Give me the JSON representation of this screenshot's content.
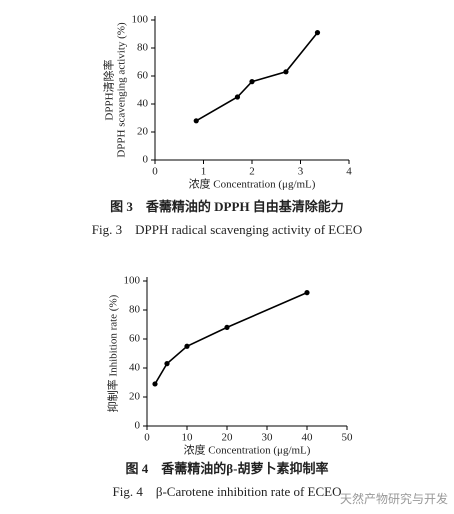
{
  "chart_data": [
    {
      "type": "line",
      "color": "#000000",
      "x_label": "浓度 Concentration (μg/mL)",
      "y_label": [
        "DPPH清除率",
        "DPPH scavenging activity (%)"
      ],
      "x": [
        0.85,
        1.7,
        2.0,
        2.7,
        3.35
      ],
      "values": [
        28,
        45,
        56,
        63,
        91
      ],
      "xlim": [
        0,
        4
      ],
      "ylim": [
        0,
        100
      ],
      "xticks": [
        0,
        1,
        2,
        3,
        4
      ],
      "yticks": [
        0,
        20,
        40,
        60,
        80,
        100
      ],
      "caption_cn": "图 3　香薷精油的 DPPH 自由基清除能力",
      "caption_en": "Fig. 3　DPPH radical scavenging activity of ECEO"
    },
    {
      "type": "line",
      "color": "#000000",
      "x_label": "浓度 Concentration (μg/mL)",
      "y_label": [
        "抑制率 Inhibition rate (%)"
      ],
      "x": [
        2,
        5,
        10,
        20,
        40
      ],
      "values": [
        29,
        43,
        55,
        68,
        92
      ],
      "xlim": [
        0,
        50
      ],
      "ylim": [
        0,
        100
      ],
      "xticks": [
        0,
        10,
        20,
        30,
        40,
        50
      ],
      "yticks": [
        0,
        20,
        40,
        60,
        80,
        100
      ],
      "caption_cn": "图 4　香薷精油的β-胡萝卜素抑制率",
      "caption_en": "Fig. 4　β-Carotene inhibition rate of ECEO"
    }
  ],
  "watermark": "天然产物研究与开发"
}
